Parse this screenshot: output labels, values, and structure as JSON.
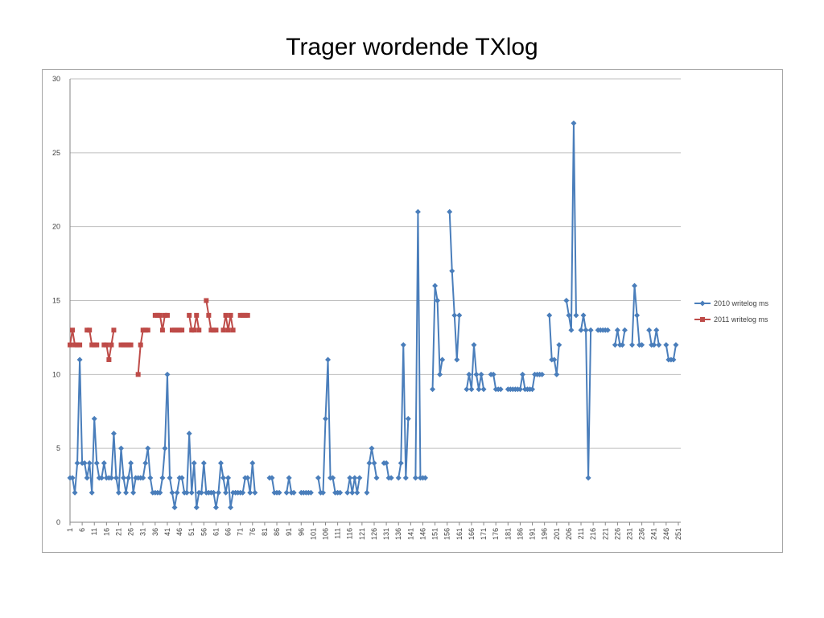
{
  "page": {
    "title": "Trager wordende TXlog"
  },
  "chart_data": {
    "type": "line",
    "title": "",
    "xlabel": "",
    "ylabel": "",
    "ylim": [
      0,
      30
    ],
    "yticks": [
      0,
      5,
      10,
      15,
      20,
      25,
      30
    ],
    "xlim": [
      1,
      252
    ],
    "xtick_labels": [
      "1",
      "6",
      "11",
      "16",
      "21",
      "26",
      "31",
      "36",
      "41",
      "46",
      "51",
      "56",
      "61",
      "66",
      "71",
      "76",
      "81",
      "86",
      "91",
      "96",
      "101",
      "106",
      "111",
      "116",
      "121",
      "126",
      "131",
      "136",
      "141",
      "146",
      "151",
      "156",
      "161",
      "166",
      "171",
      "176",
      "181",
      "186",
      "191",
      "196",
      "201",
      "206",
      "211",
      "216",
      "221",
      "226",
      "231",
      "236",
      "241",
      "246",
      "251"
    ],
    "xtick_positions": [
      1,
      6,
      11,
      16,
      21,
      26,
      31,
      36,
      41,
      46,
      51,
      56,
      61,
      66,
      71,
      76,
      81,
      86,
      91,
      96,
      101,
      106,
      111,
      116,
      121,
      126,
      131,
      136,
      141,
      146,
      151,
      156,
      161,
      166,
      171,
      176,
      181,
      186,
      191,
      196,
      201,
      206,
      211,
      216,
      221,
      226,
      231,
      236,
      241,
      246,
      251
    ],
    "grid": true,
    "legend_position": "right",
    "series": [
      {
        "name": "2010 writelog ms",
        "color": "#4a7ebb",
        "marker": "diamond",
        "points": [
          [
            1,
            3
          ],
          [
            2,
            3
          ],
          [
            3,
            2
          ],
          [
            4,
            4
          ],
          [
            5,
            11
          ],
          [
            6,
            4
          ],
          [
            7,
            4
          ],
          [
            8,
            3
          ],
          [
            9,
            4
          ],
          [
            10,
            2
          ],
          [
            11,
            7
          ],
          [
            12,
            4
          ],
          [
            13,
            3
          ],
          [
            14,
            3
          ],
          [
            15,
            4
          ],
          [
            16,
            3
          ],
          [
            17,
            3
          ],
          [
            18,
            3
          ],
          [
            19,
            6
          ],
          [
            20,
            3
          ],
          [
            21,
            2
          ],
          [
            22,
            5
          ],
          [
            23,
            3
          ],
          [
            24,
            2
          ],
          [
            25,
            3
          ],
          [
            26,
            4
          ],
          [
            27,
            2
          ],
          [
            28,
            3
          ],
          [
            29,
            3
          ],
          [
            30,
            3
          ],
          [
            31,
            3
          ],
          [
            32,
            4
          ],
          [
            33,
            5
          ],
          [
            34,
            3
          ],
          [
            35,
            2
          ],
          [
            36,
            2
          ],
          [
            37,
            2
          ],
          [
            38,
            2
          ],
          [
            39,
            3
          ],
          [
            40,
            5
          ],
          [
            41,
            10
          ],
          [
            42,
            3
          ],
          [
            43,
            2
          ],
          [
            44,
            1
          ],
          [
            45,
            2
          ],
          [
            46,
            3
          ],
          [
            47,
            3
          ],
          [
            48,
            2
          ],
          [
            49,
            2
          ],
          [
            50,
            6
          ],
          [
            51,
            2
          ],
          [
            52,
            4
          ],
          [
            53,
            1
          ],
          [
            54,
            2
          ],
          [
            55,
            2
          ],
          [
            56,
            4
          ],
          [
            57,
            2
          ],
          [
            58,
            2
          ],
          [
            59,
            2
          ],
          [
            60,
            2
          ],
          [
            61,
            1
          ],
          [
            62,
            2
          ],
          [
            63,
            4
          ],
          [
            64,
            3
          ],
          [
            65,
            2
          ],
          [
            66,
            3
          ],
          [
            67,
            1
          ],
          [
            68,
            2
          ],
          [
            69,
            2
          ],
          [
            70,
            2
          ],
          [
            71,
            2
          ],
          [
            72,
            2
          ],
          [
            73,
            3
          ],
          [
            74,
            3
          ],
          [
            75,
            2
          ],
          [
            76,
            4
          ],
          [
            77,
            2
          ],
          null,
          [
            83,
            3
          ],
          [
            84,
            3
          ],
          [
            85,
            2
          ],
          [
            86,
            2
          ],
          [
            87,
            2
          ],
          null,
          [
            90,
            2
          ],
          [
            91,
            3
          ],
          [
            92,
            2
          ],
          [
            93,
            2
          ],
          null,
          [
            96,
            2
          ],
          [
            97,
            2
          ],
          [
            98,
            2
          ],
          [
            99,
            2
          ],
          [
            100,
            2
          ],
          null,
          [
            103,
            3
          ],
          [
            104,
            2
          ],
          [
            105,
            2
          ],
          [
            106,
            7
          ],
          [
            107,
            11
          ],
          [
            108,
            3
          ],
          [
            109,
            3
          ],
          [
            110,
            2
          ],
          [
            111,
            2
          ],
          [
            112,
            2
          ],
          null,
          [
            115,
            2
          ],
          [
            116,
            3
          ],
          [
            117,
            2
          ],
          [
            118,
            3
          ],
          [
            119,
            2
          ],
          [
            120,
            3
          ],
          null,
          [
            123,
            2
          ],
          [
            124,
            4
          ],
          [
            125,
            5
          ],
          [
            126,
            4
          ],
          [
            127,
            3
          ],
          null,
          [
            130,
            4
          ],
          [
            131,
            4
          ],
          [
            132,
            3
          ],
          [
            133,
            3
          ],
          null,
          [
            136,
            3
          ],
          [
            137,
            4
          ],
          [
            138,
            12
          ],
          [
            139,
            3
          ],
          [
            140,
            7
          ],
          null,
          [
            143,
            3
          ],
          [
            144,
            21
          ],
          [
            145,
            3
          ],
          [
            146,
            3
          ],
          [
            147,
            3
          ],
          null,
          [
            150,
            9
          ],
          [
            151,
            16
          ],
          [
            152,
            15
          ],
          [
            153,
            10
          ],
          [
            154,
            11
          ],
          null,
          [
            157,
            21
          ],
          [
            158,
            17
          ],
          [
            159,
            14
          ],
          [
            160,
            11
          ],
          [
            161,
            14
          ],
          null,
          [
            164,
            9
          ],
          [
            165,
            10
          ],
          [
            166,
            9
          ],
          [
            167,
            12
          ],
          [
            168,
            10
          ],
          [
            169,
            9
          ],
          [
            170,
            10
          ],
          [
            171,
            9
          ],
          null,
          [
            174,
            10
          ],
          [
            175,
            10
          ],
          [
            176,
            9
          ],
          [
            177,
            9
          ],
          [
            178,
            9
          ],
          null,
          [
            181,
            9
          ],
          [
            182,
            9
          ],
          [
            183,
            9
          ],
          [
            184,
            9
          ],
          [
            185,
            9
          ],
          [
            186,
            9
          ],
          [
            187,
            10
          ],
          [
            188,
            9
          ],
          [
            189,
            9
          ],
          [
            190,
            9
          ],
          [
            191,
            9
          ],
          [
            192,
            10
          ],
          [
            193,
            10
          ],
          [
            194,
            10
          ],
          [
            195,
            10
          ],
          null,
          [
            198,
            14
          ],
          [
            199,
            11
          ],
          [
            200,
            11
          ],
          [
            201,
            10
          ],
          [
            202,
            12
          ],
          null,
          [
            205,
            15
          ],
          [
            206,
            14
          ],
          [
            207,
            13
          ],
          [
            208,
            27
          ],
          [
            209,
            14
          ],
          null,
          [
            211,
            13
          ],
          [
            212,
            14
          ],
          [
            213,
            13
          ],
          [
            214,
            3
          ],
          [
            215,
            13
          ],
          null,
          [
            218,
            13
          ],
          [
            219,
            13
          ],
          [
            220,
            13
          ],
          [
            221,
            13
          ],
          [
            222,
            13
          ],
          null,
          [
            225,
            12
          ],
          [
            226,
            13
          ],
          [
            227,
            12
          ],
          [
            228,
            12
          ],
          [
            229,
            13
          ],
          null,
          [
            232,
            12
          ],
          [
            233,
            16
          ],
          [
            234,
            14
          ],
          [
            235,
            12
          ],
          [
            236,
            12
          ],
          null,
          [
            239,
            13
          ],
          [
            240,
            12
          ],
          [
            241,
            12
          ],
          [
            242,
            13
          ],
          [
            243,
            12
          ],
          null,
          [
            246,
            12
          ],
          [
            247,
            11
          ],
          [
            248,
            11
          ],
          [
            249,
            11
          ],
          [
            250,
            12
          ]
        ]
      },
      {
        "name": "2011 writelog ms",
        "color": "#be4b48",
        "marker": "square",
        "points": [
          [
            1,
            12
          ],
          [
            2,
            13
          ],
          [
            3,
            12
          ],
          [
            4,
            12
          ],
          [
            5,
            12
          ],
          null,
          [
            8,
            13
          ],
          [
            9,
            13
          ],
          [
            10,
            12
          ],
          [
            11,
            12
          ],
          [
            12,
            12
          ],
          null,
          [
            15,
            12
          ],
          [
            16,
            12
          ],
          [
            17,
            11
          ],
          [
            18,
            12
          ],
          [
            19,
            13
          ],
          null,
          [
            22,
            12
          ],
          [
            23,
            12
          ],
          [
            24,
            12
          ],
          [
            25,
            12
          ],
          [
            26,
            12
          ],
          null,
          [
            29,
            10
          ],
          [
            30,
            12
          ],
          [
            31,
            13
          ],
          [
            32,
            13
          ],
          [
            33,
            13
          ],
          null,
          [
            36,
            14
          ],
          [
            37,
            14
          ],
          [
            38,
            14
          ],
          [
            39,
            13
          ],
          [
            40,
            14
          ],
          [
            41,
            14
          ],
          null,
          [
            43,
            13
          ],
          [
            44,
            13
          ],
          [
            45,
            13
          ],
          [
            46,
            13
          ],
          [
            47,
            13
          ],
          null,
          [
            50,
            14
          ],
          [
            51,
            13
          ],
          [
            52,
            13
          ],
          [
            53,
            14
          ],
          [
            54,
            13
          ],
          null,
          [
            57,
            15
          ],
          [
            58,
            14
          ],
          [
            59,
            13
          ],
          [
            60,
            13
          ],
          [
            61,
            13
          ],
          null,
          [
            64,
            13
          ],
          [
            65,
            14
          ],
          [
            66,
            13
          ],
          [
            67,
            14
          ],
          [
            68,
            13
          ],
          null,
          [
            71,
            14
          ],
          [
            72,
            14
          ],
          [
            73,
            14
          ],
          [
            74,
            14
          ]
        ]
      }
    ]
  }
}
